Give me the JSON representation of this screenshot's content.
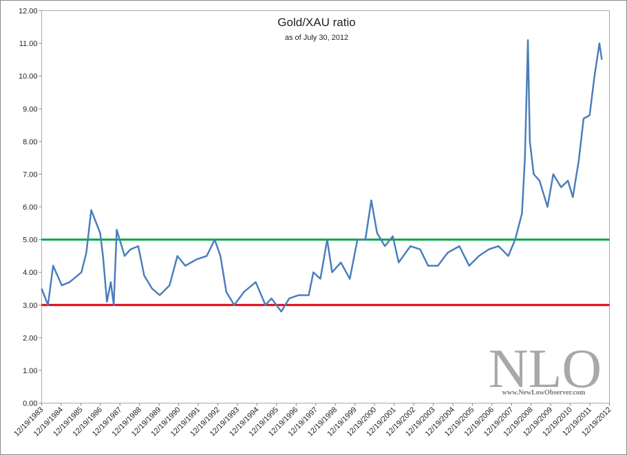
{
  "chart_data": {
    "type": "line",
    "title": "Gold/XAU ratio",
    "subtitle": "as of July 30, 2012",
    "x": [
      "12/19/1983",
      "04/15/1984",
      "07/20/1984",
      "12/30/1984",
      "05/25/1985",
      "12/30/1985",
      "04/01/1986",
      "07/01/1986",
      "12/15/1986",
      "02/05/1987",
      "04/20/1987",
      "07/01/1987",
      "08/25/1987",
      "10/20/1987",
      "03/15/1988",
      "07/01/1988",
      "11/25/1988",
      "03/15/1989",
      "08/10/1989",
      "12/30/1989",
      "07/01/1990",
      "11/25/1990",
      "04/20/1991",
      "11/25/1991",
      "05/25/1992",
      "10/20/1992",
      "02/05/1993",
      "05/25/1993",
      "10/20/1993",
      "04/20/1994",
      "11/25/1994",
      "05/25/1995",
      "09/15/1995",
      "03/15/1996",
      "08/10/1996",
      "02/05/1997",
      "08/10/1997",
      "11/05/1997",
      "03/15/1998",
      "07/20/1998",
      "10/20/1998",
      "04/01/1999",
      "09/15/1999",
      "02/05/2000",
      "07/01/2000",
      "10/20/2000",
      "02/05/2001",
      "07/01/2001",
      "11/25/2001",
      "03/15/2002",
      "10/20/2002",
      "04/20/2003",
      "09/15/2003",
      "03/15/2004",
      "09/15/2004",
      "04/20/2005",
      "10/20/2005",
      "04/20/2006",
      "10/20/2006",
      "04/20/2007",
      "10/20/2007",
      "02/25/2008",
      "07/01/2008",
      "08/25/2008",
      "10/20/2008",
      "11/25/2008",
      "02/05/2009",
      "05/25/2009",
      "10/20/2009",
      "02/05/2010",
      "07/01/2010",
      "11/05/2010",
      "02/05/2011",
      "05/25/2011",
      "08/25/2011",
      "12/15/2011",
      "03/15/2012",
      "06/15/2012",
      "07/30/2012"
    ],
    "series": [
      {
        "name": "Gold/XAU ratio",
        "color": "#4a7ebb",
        "values": [
          3.5,
          3.0,
          4.2,
          3.6,
          3.7,
          4.0,
          4.6,
          5.9,
          5.2,
          4.5,
          3.1,
          3.7,
          3.0,
          5.3,
          4.5,
          4.7,
          4.8,
          3.9,
          3.5,
          3.3,
          3.6,
          4.5,
          4.2,
          4.4,
          4.5,
          5.0,
          4.5,
          3.4,
          3.0,
          3.4,
          3.7,
          3.0,
          3.2,
          2.8,
          3.2,
          3.3,
          3.3,
          4.0,
          3.8,
          5.0,
          4.0,
          4.3,
          3.8,
          5.0,
          5.0,
          6.2,
          5.2,
          4.8,
          5.1,
          4.3,
          4.8,
          4.7,
          4.2,
          4.2,
          4.6,
          4.8,
          4.2,
          4.5,
          4.7,
          4.8,
          4.5,
          5.0,
          5.8,
          7.5,
          11.1,
          8.0,
          7.0,
          6.8,
          6.0,
          7.0,
          6.6,
          6.8,
          6.3,
          7.4,
          8.7,
          8.8,
          10.0,
          11.0,
          10.5
        ]
      }
    ],
    "xlim": [
      "12/19/1983",
      "12/19/2012"
    ],
    "xticks": [
      "12/19/1983",
      "12/19/1984",
      "12/19/1985",
      "12/19/1986",
      "12/19/1987",
      "12/19/1988",
      "12/19/1989",
      "12/19/1990",
      "12/19/1991",
      "12/19/1992",
      "12/19/1993",
      "12/19/1994",
      "12/19/1995",
      "12/19/1996",
      "12/19/1997",
      "12/19/1998",
      "12/19/1999",
      "12/19/2000",
      "12/19/2001",
      "12/19/2002",
      "12/19/2003",
      "12/19/2004",
      "12/19/2005",
      "12/19/2006",
      "12/19/2007",
      "12/19/2008",
      "12/19/2009",
      "12/19/2010",
      "12/19/2011",
      "12/19/2012"
    ],
    "ylim": [
      0,
      12
    ],
    "yticks": [
      {
        "value": 0,
        "label": "0.00"
      },
      {
        "value": 1,
        "label": "1.00"
      },
      {
        "value": 2,
        "label": "2.00"
      },
      {
        "value": 3,
        "label": "3.00"
      },
      {
        "value": 4,
        "label": "4.00"
      },
      {
        "value": 5,
        "label": "5.00"
      },
      {
        "value": 6,
        "label": "6.00"
      },
      {
        "value": 7,
        "label": "7.00"
      },
      {
        "value": 8,
        "label": "8.00"
      },
      {
        "value": 9,
        "label": "9.00"
      },
      {
        "value": 10,
        "label": "10.00"
      },
      {
        "value": 11,
        "label": "11.00"
      },
      {
        "value": 12,
        "label": "12.00"
      }
    ],
    "grid": false,
    "reference_lines": [
      {
        "value": 5,
        "color": "#00a640"
      },
      {
        "value": 3,
        "color": "#e3000f"
      }
    ],
    "watermark": {
      "text": "NLO",
      "url": "www.NewLowObserver.com"
    }
  }
}
